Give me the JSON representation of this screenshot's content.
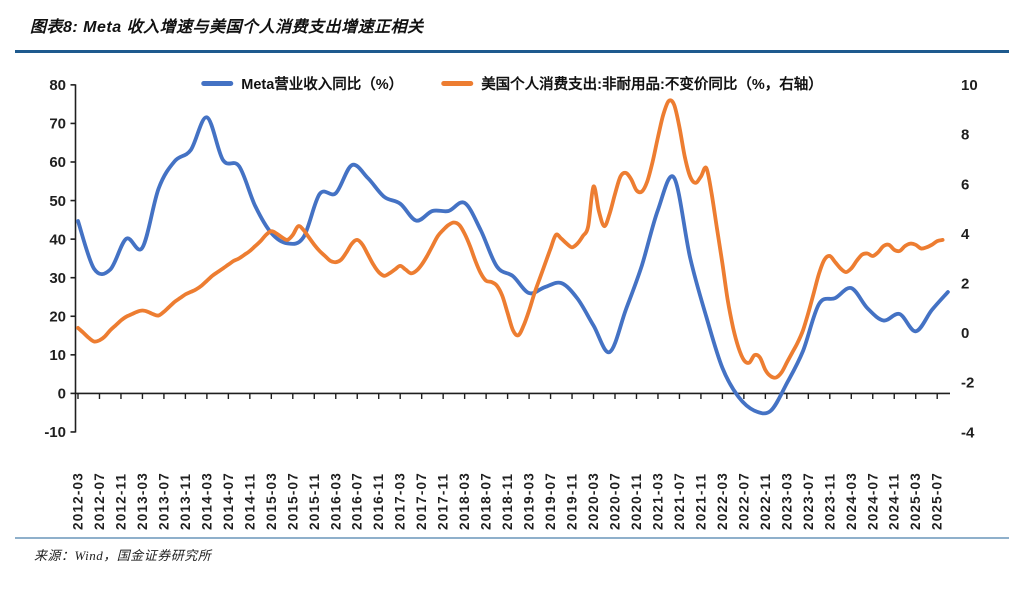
{
  "figure": {
    "title": "图表8: Meta 收入增速与美国个人消费支出增速正相关",
    "source": "来源：Wind，国金证券研究所"
  },
  "chart_data": {
    "type": "line",
    "smoothed": true,
    "grid": false,
    "legend_position": "top",
    "x_axis": {
      "unit": "month",
      "start": "2012-03",
      "end": "2025-09",
      "tick_labels": [
        "2012-03",
        "2012-07",
        "2012-11",
        "2013-03",
        "2013-07",
        "2013-11",
        "2014-03",
        "2014-07",
        "2014-11",
        "2015-03",
        "2015-07",
        "2015-11",
        "2016-03",
        "2016-07",
        "2016-11",
        "2017-03",
        "2017-07",
        "2017-11",
        "2018-03",
        "2018-07",
        "2018-11",
        "2019-03",
        "2019-07",
        "2019-11",
        "2020-03",
        "2020-07",
        "2020-11",
        "2021-03",
        "2021-07",
        "2021-11",
        "2022-03",
        "2022-07",
        "2022-11",
        "2023-03",
        "2023-07",
        "2023-11",
        "2024-03",
        "2024-07",
        "2024-11",
        "2025-03",
        "2025-07"
      ]
    },
    "left_axis": {
      "min": -10,
      "max": 80,
      "step": 10,
      "tick_labels": [
        "80",
        "70",
        "60",
        "50",
        "40",
        "30",
        "20",
        "10",
        "0",
        "-10"
      ]
    },
    "right_axis": {
      "min": -4,
      "max": 10,
      "step": 2,
      "tick_labels": [
        "10",
        "8",
        "6",
        "4",
        "2",
        "0",
        "-2",
        "-4"
      ]
    },
    "series": [
      {
        "name": "Meta营业收入同比（%）",
        "color": "#4472C4",
        "axis": "left",
        "start": "2012-03",
        "interval_months": 3,
        "values": [
          44.7,
          32.3,
          32.1,
          40.1,
          37.8,
          53.1,
          60.2,
          63.1,
          71.6,
          60.5,
          58.9,
          48.6,
          41.6,
          38.9,
          40.5,
          51.7,
          51.9,
          59.2,
          55.8,
          51.0,
          49.2,
          44.8,
          47.3,
          47.3,
          49.4,
          42.3,
          32.9,
          30.4,
          26.0,
          27.6,
          28.6,
          24.6,
          17.6,
          10.7,
          21.6,
          33.2,
          47.6,
          55.9,
          35.1,
          19.9,
          6.6,
          -0.9,
          -4.5,
          -4.5,
          2.6,
          11.0,
          23.2,
          24.7,
          27.3,
          22.1,
          18.9,
          20.6,
          16.1,
          21.6,
          26.3
        ]
      },
      {
        "name": "美国个人消费支出:非耐用品:不变价同比（%，右轴）",
        "color": "#ED7D31",
        "axis": "right",
        "start": "2012-03",
        "interval_months": 1,
        "values": [
          0.2,
          0.0,
          -0.2,
          -0.35,
          -0.3,
          -0.15,
          0.1,
          0.3,
          0.5,
          0.65,
          0.75,
          0.85,
          0.9,
          0.85,
          0.75,
          0.7,
          0.85,
          1.05,
          1.25,
          1.4,
          1.55,
          1.65,
          1.75,
          1.9,
          2.1,
          2.3,
          2.45,
          2.6,
          2.75,
          2.9,
          3.0,
          3.15,
          3.3,
          3.5,
          3.7,
          3.95,
          4.1,
          4.0,
          3.85,
          3.75,
          3.95,
          4.3,
          4.15,
          3.85,
          3.55,
          3.3,
          3.1,
          2.9,
          2.85,
          2.95,
          3.25,
          3.6,
          3.75,
          3.55,
          3.15,
          2.75,
          2.45,
          2.3,
          2.4,
          2.55,
          2.7,
          2.55,
          2.4,
          2.5,
          2.75,
          3.1,
          3.5,
          3.9,
          4.15,
          4.35,
          4.45,
          4.35,
          4.0,
          3.5,
          2.9,
          2.4,
          2.1,
          2.05,
          1.9,
          1.5,
          0.8,
          0.1,
          -0.1,
          0.3,
          0.9,
          1.6,
          2.2,
          2.8,
          3.4,
          3.95,
          3.8,
          3.6,
          3.45,
          3.6,
          3.9,
          4.3,
          5.9,
          4.9,
          4.3,
          4.8,
          5.6,
          6.3,
          6.45,
          6.2,
          5.75,
          5.7,
          6.1,
          6.9,
          7.9,
          8.8,
          9.35,
          9.2,
          8.3,
          7.1,
          6.3,
          6.05,
          6.3,
          6.65,
          5.6,
          4.2,
          2.8,
          1.3,
          0.2,
          -0.6,
          -1.1,
          -1.2,
          -0.9,
          -1.0,
          -1.5,
          -1.75,
          -1.8,
          -1.6,
          -1.2,
          -0.8,
          -0.4,
          0.1,
          0.8,
          1.6,
          2.4,
          2.95,
          3.1,
          2.85,
          2.6,
          2.45,
          2.6,
          2.9,
          3.15,
          3.2,
          3.1,
          3.25,
          3.5,
          3.55,
          3.35,
          3.3,
          3.5,
          3.6,
          3.55,
          3.4,
          3.45,
          3.55,
          3.7,
          3.75
        ]
      }
    ]
  },
  "styles": {
    "title_rule_color": "#1E5A8E",
    "bottom_rule_color": "#8FB0CB",
    "axis_color": "#1f1f1f",
    "background": "#FFFFFF"
  }
}
